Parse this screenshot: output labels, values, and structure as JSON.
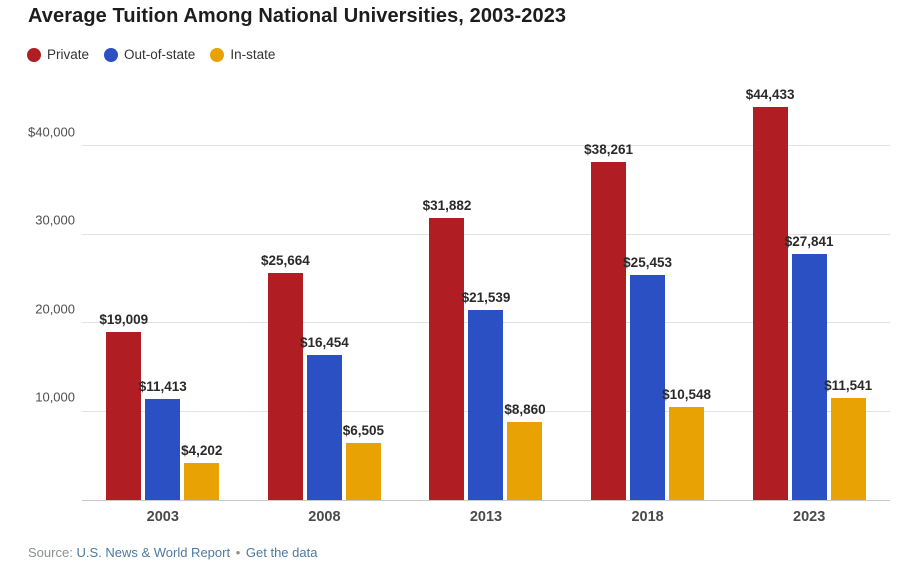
{
  "title": "Average Tuition Among National Universities, 2003-2023",
  "chart_data": {
    "type": "bar",
    "title": "Average Tuition Among National Universities, 2003-2023",
    "categories": [
      "2003",
      "2008",
      "2013",
      "2018",
      "2023"
    ],
    "series": [
      {
        "name": "Private",
        "color": "#b01e24",
        "values": [
          19009,
          25664,
          31882,
          38261,
          44433
        ],
        "value_labels": [
          "$19,009",
          "$25,664",
          "$31,882",
          "$38,261",
          "$44,433"
        ]
      },
      {
        "name": "Out-of-state",
        "color": "#2b50c3",
        "values": [
          11413,
          16454,
          21539,
          25453,
          27841
        ],
        "value_labels": [
          "$11,413",
          "$16,454",
          "$21,539",
          "$25,453",
          "$27,841"
        ]
      },
      {
        "name": "In-state",
        "color": "#e8a204",
        "values": [
          4202,
          6505,
          8860,
          10548,
          11541
        ],
        "value_labels": [
          "$4,202",
          "$6,505",
          "$8,860",
          "$10,548",
          "$11,541"
        ]
      }
    ],
    "y_axis": {
      "max": 50000,
      "ticks": [
        {
          "value": 40000,
          "label": "$40,000"
        },
        {
          "value": 30000,
          "label": "30,000"
        },
        {
          "value": 20000,
          "label": "20,000"
        },
        {
          "value": 10000,
          "label": "10,000"
        }
      ]
    },
    "grid": true,
    "legend_position": "top",
    "xlabel": "",
    "ylabel": ""
  },
  "footer": {
    "source_prefix": "Source:",
    "source_name": "U.S. News & World Report",
    "separator": "•",
    "link_label": "Get the data"
  },
  "colors": {
    "private": "#b01e24",
    "out_of_state": "#2b50c3",
    "in_state": "#e8a204",
    "gridline": "#e2e2e2",
    "baseline": "#c9c9c9",
    "title_text": "#1d1d1f",
    "link": "#4d79a1"
  }
}
